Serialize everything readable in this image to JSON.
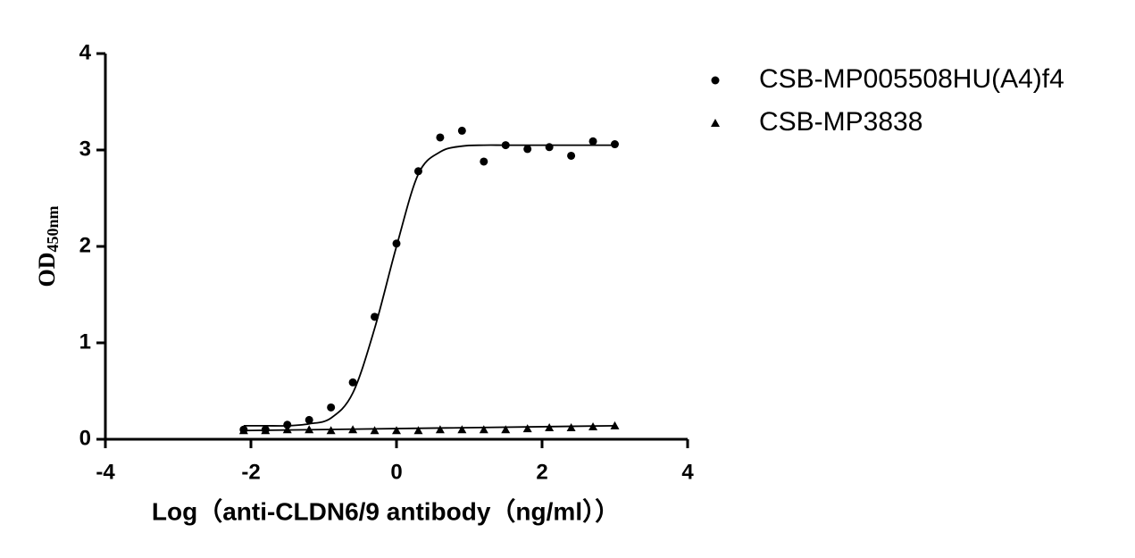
{
  "chart_data": {
    "type": "scatter",
    "xlabel": "Log（anti-CLDN6/9 antibody（ng/ml））",
    "ylabel": "OD",
    "ylabel_subscript": "450nm",
    "xlim": [
      -4,
      4
    ],
    "xticks": [
      -4,
      -2,
      0,
      2,
      4
    ],
    "ylim": [
      0,
      4
    ],
    "yticks": [
      0,
      1,
      2,
      3,
      4
    ],
    "series": [
      {
        "name": "CSB-MP005508HU(A4)f4",
        "marker": "circle",
        "color": "#000000",
        "x": [
          -2.1,
          -1.8,
          -1.5,
          -1.2,
          -0.9,
          -0.6,
          -0.3,
          0,
          0.3,
          0.6,
          0.9,
          1.2,
          1.5,
          1.8,
          2.1,
          2.4,
          2.7,
          3.0
        ],
        "values": [
          0.1,
          0.1,
          0.15,
          0.2,
          0.33,
          0.59,
          1.27,
          2.03,
          2.78,
          3.13,
          3.2,
          2.88,
          3.05,
          3.01,
          3.03,
          2.94,
          3.09,
          3.06
        ]
      },
      {
        "name": "CSB-MP3838",
        "marker": "triangle",
        "color": "#000000",
        "x": [
          -2.1,
          -1.8,
          -1.5,
          -1.2,
          -0.9,
          -0.6,
          -0.3,
          0,
          0.3,
          0.6,
          0.9,
          1.2,
          1.5,
          1.8,
          2.1,
          2.4,
          2.7,
          3.0
        ],
        "values": [
          0.09,
          0.09,
          0.1,
          0.1,
          0.09,
          0.1,
          0.09,
          0.09,
          0.09,
          0.1,
          0.1,
          0.1,
          0.1,
          0.11,
          0.12,
          0.12,
          0.13,
          0.14
        ]
      }
    ],
    "fits": [
      {
        "x": [
          -2.1,
          -1.8,
          -1.5,
          -1.2,
          -0.9,
          -0.6,
          -0.3,
          0,
          0.3,
          0.6,
          0.9,
          1.2,
          1.5,
          2.0,
          2.5,
          3.0
        ],
        "values": [
          0.14,
          0.14,
          0.14,
          0.16,
          0.22,
          0.48,
          1.15,
          2.0,
          2.75,
          2.98,
          3.04,
          3.05,
          3.05,
          3.05,
          3.05,
          3.05
        ]
      },
      {
        "x": [
          -2.1,
          3.0
        ],
        "values": [
          0.09,
          0.14
        ]
      }
    ]
  }
}
